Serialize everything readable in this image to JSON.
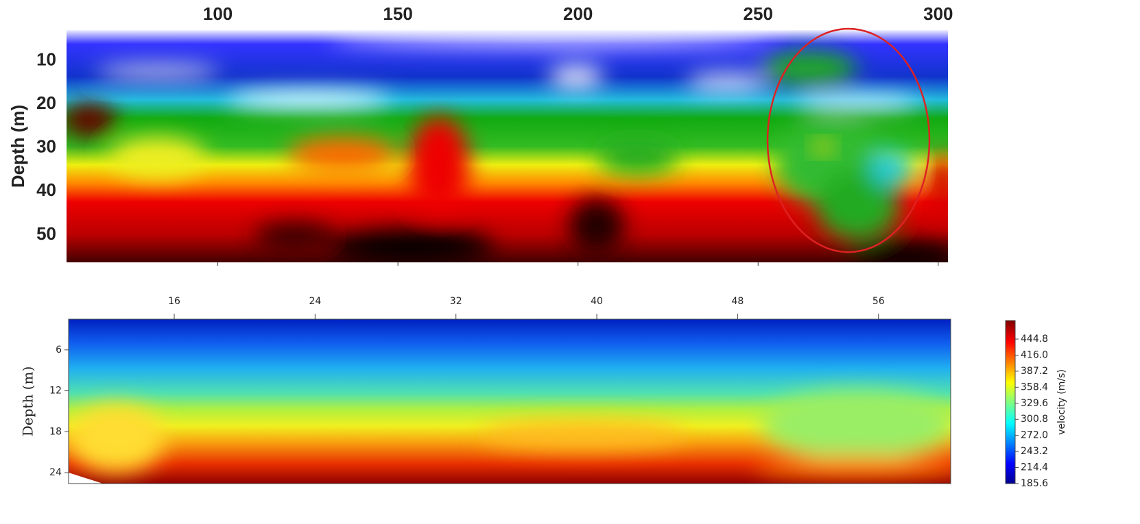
{
  "chart_data": [
    {
      "type": "heatmap",
      "ylabel": "Depth (m)",
      "xlim": [
        58,
        302.7
      ],
      "xticks": [
        100,
        150,
        200,
        250,
        300
      ],
      "ylim": [
        3,
        56.3
      ],
      "yticks": [
        10,
        20,
        30,
        40,
        50
      ]
    },
    {
      "type": "heatmap",
      "ylabel": "Depth (m)",
      "xlim": [
        10,
        60.1
      ],
      "xticks": [
        16,
        24,
        32,
        40,
        48,
        56
      ],
      "ylim": [
        1.5,
        25.6
      ],
      "yticks": [
        6,
        12,
        18,
        24
      ],
      "colorbar": {
        "label": "velocity (m/s)",
        "lim": [
          185.6,
          478
        ],
        "ticks": [
          444.8,
          {
            "value": 416,
            "label": "416.0"
          },
          387.2,
          358.4,
          329.6,
          300.8,
          {
            "value": 272,
            "label": "272.0"
          },
          243.2,
          214.4,
          185.6
        ]
      }
    }
  ]
}
